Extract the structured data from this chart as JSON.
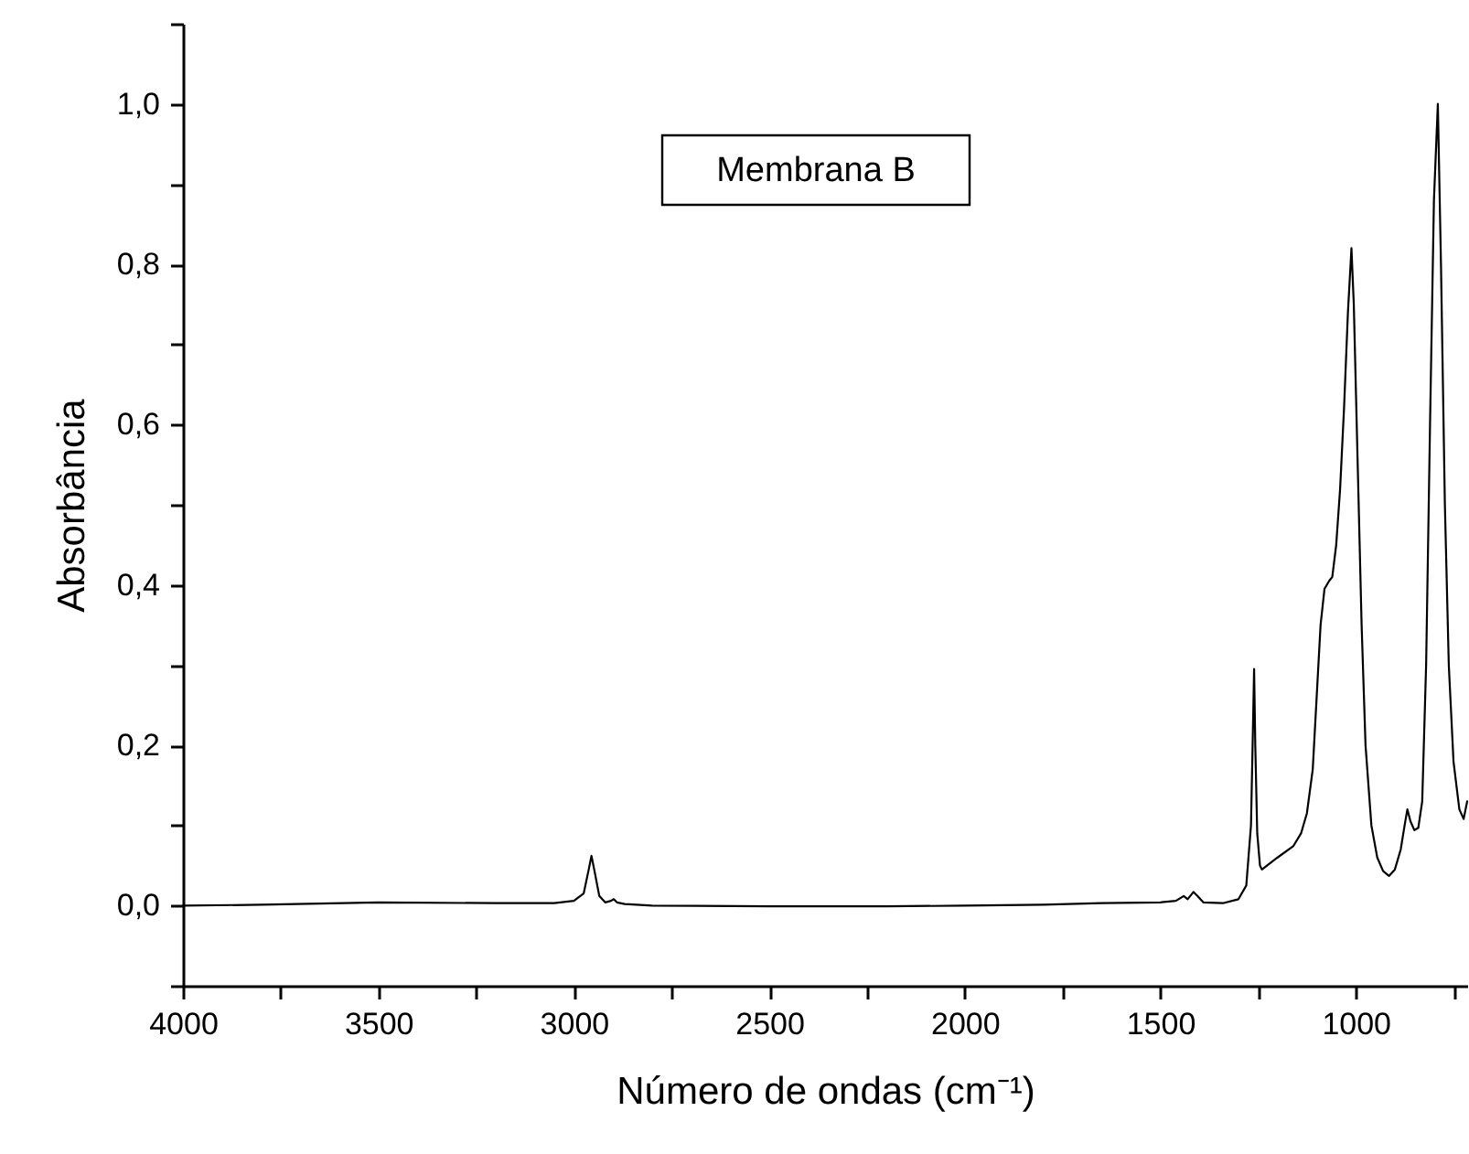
{
  "chart_data": {
    "type": "line",
    "xlabel": "Número de ondas (cm⁻¹)",
    "ylabel": "Absorbância",
    "annotations": [
      "Membrana B"
    ],
    "xlim": [
      4000,
      715
    ],
    "ylim": [
      -0.1,
      1.1
    ],
    "xticks": [
      4000,
      {
        "value": 3750,
        "label": null
      },
      3500,
      {
        "value": 3250,
        "label": null
      },
      3000,
      {
        "value": 2750,
        "label": null
      },
      2500,
      {
        "value": 2250,
        "label": null
      },
      2000,
      {
        "value": 1750,
        "label": null
      },
      1500,
      {
        "value": 1250,
        "label": null
      },
      1000,
      {
        "value": 750,
        "label": null
      }
    ],
    "yticks": [
      {
        "value": -0.1,
        "label": null
      },
      {
        "value": 0,
        "label": "0,0"
      },
      {
        "value": 0.1,
        "label": null
      },
      {
        "value": 0.2,
        "label": "0,2"
      },
      {
        "value": 0.3,
        "label": null
      },
      {
        "value": 0.4,
        "label": "0,4"
      },
      {
        "value": 0.5,
        "label": null
      },
      {
        "value": 0.6,
        "label": "0,6"
      },
      {
        "value": 0.7,
        "label": null
      },
      {
        "value": 0.8,
        "label": "0,8"
      },
      {
        "value": 0.9,
        "label": null
      },
      {
        "value": 1.0,
        "label": "1,0"
      },
      {
        "value": 1.1,
        "label": null
      }
    ],
    "x": [
      4000,
      3800,
      3500,
      3200,
      3050,
      3000,
      2975,
      2962,
      2955,
      2948,
      2935,
      2920,
      2905,
      2898,
      2890,
      2870,
      2800,
      2500,
      2200,
      2000,
      1800,
      1650,
      1500,
      1460,
      1440,
      1430,
      1415,
      1405,
      1390,
      1340,
      1300,
      1280,
      1268,
      1263,
      1260,
      1257,
      1252,
      1245,
      1240,
      1200,
      1160,
      1140,
      1125,
      1110,
      1100,
      1090,
      1080,
      1068,
      1060,
      1050,
      1040,
      1030,
      1020,
      1011,
      1005,
      995,
      985,
      975,
      960,
      945,
      930,
      915,
      900,
      885,
      875,
      868,
      860,
      850,
      840,
      830,
      820,
      810,
      800,
      790,
      782,
      772,
      762,
      750,
      735,
      724,
      715
    ],
    "series": [
      {
        "color": "#000000",
        "values": [
          0.0,
          0.001,
          0.004,
          0.003,
          0.003,
          0.006,
          0.015,
          0.045,
          0.062,
          0.045,
          0.012,
          0.004,
          0.006,
          0.008,
          0.004,
          0.002,
          0.0,
          -0.001,
          -0.001,
          0.0,
          0.001,
          0.003,
          0.004,
          0.006,
          0.012,
          0.008,
          0.017,
          0.012,
          0.004,
          0.003,
          0.008,
          0.025,
          0.1,
          0.22,
          0.295,
          0.2,
          0.09,
          0.05,
          0.045,
          0.06,
          0.074,
          0.09,
          0.115,
          0.17,
          0.26,
          0.35,
          0.395,
          0.405,
          0.41,
          0.45,
          0.52,
          0.62,
          0.74,
          0.82,
          0.75,
          0.55,
          0.35,
          0.2,
          0.1,
          0.06,
          0.043,
          0.037,
          0.045,
          0.07,
          0.1,
          0.12,
          0.105,
          0.094,
          0.097,
          0.13,
          0.3,
          0.6,
          0.88,
          1.0,
          0.8,
          0.5,
          0.3,
          0.18,
          0.12,
          0.108,
          0.13
        ]
      }
    ]
  }
}
